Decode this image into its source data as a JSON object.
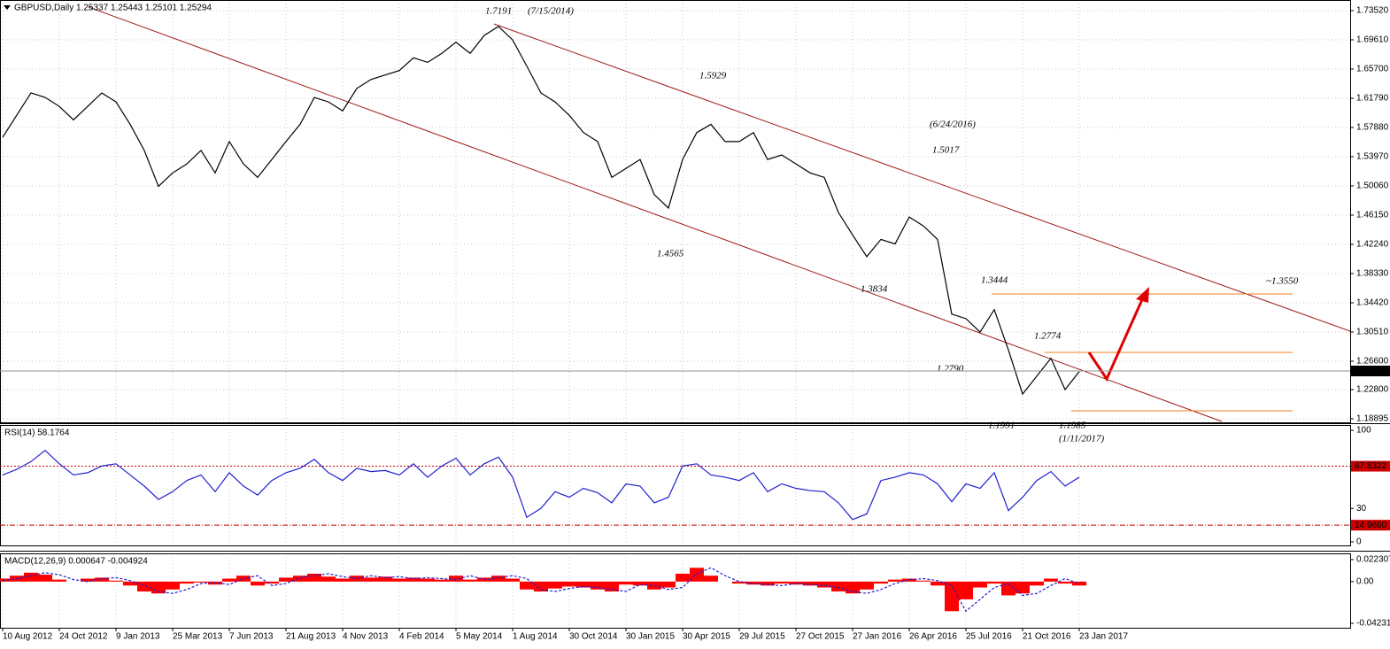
{
  "chart_data": [
    {
      "type": "line",
      "title": "GBPUSD,Daily  1.25337 1.25443 1.25101 1.25294",
      "series": [
        {
          "color": "#000000",
          "values": [
            1.5657,
            1.5954,
            1.625,
            1.619,
            1.607,
            1.589,
            1.607,
            1.625,
            1.613,
            1.583,
            1.548,
            1.5,
            1.518,
            1.53,
            1.548,
            1.518,
            1.56,
            1.53,
            1.512,
            1.536,
            1.56,
            1.583,
            1.619,
            1.613,
            1.601,
            1.631,
            1.643,
            1.649,
            1.655,
            1.672,
            1.666,
            1.678,
            1.693,
            1.678,
            1.702,
            1.714,
            1.696,
            1.661,
            1.625,
            1.613,
            1.595,
            1.572,
            1.56,
            1.512,
            1.524,
            1.536,
            1.489,
            1.471,
            1.536,
            1.572,
            1.583,
            1.56,
            1.56,
            1.572,
            1.536,
            1.542,
            1.53,
            1.518,
            1.512,
            1.465,
            1.435,
            1.406,
            1.429,
            1.423,
            1.459,
            1.447,
            1.429,
            1.329,
            1.323,
            1.305,
            1.335,
            1.281,
            1.222,
            1.246,
            1.27,
            1.228,
            1.252
          ]
        }
      ],
      "ylim": [
        1.1842,
        1.7494
      ],
      "yticks": [
        {
          "value": 1.7352,
          "label": "1.73520"
        },
        {
          "value": 1.6961,
          "label": "1.69610"
        },
        {
          "value": 1.657,
          "label": "1.65700"
        },
        {
          "value": 1.6179,
          "label": "1.61790"
        },
        {
          "value": 1.5788,
          "label": "1.57880"
        },
        {
          "value": 1.5397,
          "label": "1.53970"
        },
        {
          "value": 1.5006,
          "label": "1.50060"
        },
        {
          "value": 1.4615,
          "label": "1.46150"
        },
        {
          "value": 1.4224,
          "label": "1.42240"
        },
        {
          "value": 1.3833,
          "label": "1.38330"
        },
        {
          "value": 1.3442,
          "label": "1.34420"
        },
        {
          "value": 1.3051,
          "label": "1.30510"
        },
        {
          "value": 1.266,
          "label": "1.26600"
        },
        {
          "value": 1.228,
          "label": "1.22800"
        },
        {
          "value": 1.18895,
          "label": "1.18895"
        }
      ],
      "current_price": 1.25294,
      "grid": true,
      "annotations": [
        {
          "text": "1.7191",
          "color": "#e00000"
        },
        {
          "text": "(7/15/2014)",
          "color": "#e00000"
        },
        {
          "text": "1.5929",
          "color": "#2a2ad0"
        },
        {
          "text": "(6/24/2016)",
          "color": "#e00000"
        },
        {
          "text": "1.5017",
          "color": "#9a3cb8"
        },
        {
          "text": "1.4565",
          "color": "#9a3cb8"
        },
        {
          "text": "1.3834",
          "color": "#2a2ad0"
        },
        {
          "text": "1.3444",
          "color": "#9a3cb8"
        },
        {
          "text": "~1.3550",
          "color": "#f08020"
        },
        {
          "text": "1.2774",
          "color": "#9a3cb8"
        },
        {
          "text": "1.2790",
          "color": "#9a3cb8"
        },
        {
          "text": "1.1991",
          "color": "#10a010"
        },
        {
          "text": "1.1985",
          "color": "#10a010"
        },
        {
          "text": "(1/11/2017)",
          "color": "#e00000"
        }
      ]
    },
    {
      "type": "line",
      "title": "RSI(14) 58.1764",
      "series": [
        {
          "color": "#1f1fd0",
          "values": [
            60,
            65,
            72,
            82,
            70,
            60,
            62,
            68,
            70,
            60,
            50,
            38,
            45,
            55,
            60,
            45,
            62,
            50,
            42,
            55,
            62,
            66,
            74,
            62,
            55,
            66,
            63,
            64,
            60,
            70,
            58,
            68,
            75,
            60,
            70,
            76,
            58,
            22,
            30,
            45,
            40,
            48,
            44,
            35,
            52,
            50,
            35,
            40,
            68,
            70,
            60,
            58,
            55,
            62,
            45,
            52,
            48,
            46,
            45,
            35,
            20,
            25,
            55,
            58,
            62,
            60,
            52,
            36,
            52,
            48,
            62,
            28,
            40,
            55,
            63,
            50,
            58
          ]
        }
      ],
      "ylim": [
        -3.2,
        104.8
      ],
      "yticks": [
        100,
        30,
        0
      ],
      "levels": [
        {
          "value": 67.8322,
          "label": "67.8322"
        },
        {
          "value": 14.966,
          "label": "14.9660"
        }
      ],
      "level_color": "#cc0000"
    },
    {
      "type": "bar",
      "title": "MACD(12,26,9) 0.000647 -0.004924",
      "categories": [
        "10 Aug 2012",
        null,
        null,
        null,
        "24 Oct 2012",
        null,
        null,
        null,
        "9 Jan 2013",
        null,
        null,
        null,
        "25 Mar 2013",
        null,
        null,
        null,
        "7 Jun 2013",
        null,
        null,
        null,
        "21 Aug 2013",
        null,
        null,
        null,
        "4 Nov 2013",
        null,
        null,
        null,
        "4 Feb 2014",
        null,
        null,
        null,
        "5 May 2014",
        null,
        null,
        null,
        "1 Aug 2014",
        null,
        null,
        null,
        "30 Oct 2014",
        null,
        null,
        null,
        "30 Jan 2015",
        null,
        null,
        null,
        "30 Apr 2015",
        null,
        null,
        null,
        "29 Jul 2015",
        null,
        null,
        null,
        "27 Oct 2015",
        null,
        null,
        null,
        "27 Jan 2016",
        null,
        null,
        null,
        "26 Apr 2016",
        null,
        null,
        null,
        "25 Jul 2016",
        null,
        null,
        null,
        "21 Oct 2016",
        null,
        null,
        null,
        "23 Jan 2017"
      ],
      "series": [
        {
          "color": "#ff0000",
          "values": [
            0.003,
            0.006,
            0.009,
            0.007,
            0.002,
            0,
            0.003,
            0.004,
            0.001,
            -0.004,
            -0.01,
            -0.012,
            -0.008,
            -0.002,
            -0.001,
            -0.003,
            0.003,
            0.006,
            -0.004,
            -0.002,
            0.004,
            0.006,
            0.008,
            0.005,
            0.003,
            0.006,
            0.004,
            0.005,
            0.003,
            0.004,
            0.003,
            0.002,
            0.006,
            0.002,
            0.004,
            0.006,
            0.003,
            -0.008,
            -0.01,
            -0.007,
            -0.005,
            -0.006,
            -0.008,
            -0.01,
            -0.003,
            -0.004,
            -0.008,
            -0.006,
            0.008,
            0.014,
            0.006,
            0,
            -0.002,
            -0.003,
            -0.004,
            -0.002,
            -0.003,
            -0.004,
            -0.006,
            -0.01,
            -0.012,
            -0.008,
            -0.002,
            0.002,
            0.003,
            0.001,
            -0.004,
            -0.03,
            -0.018,
            -0.006,
            -0.002,
            -0.014,
            -0.012,
            -0.004,
            0.003,
            -0.002,
            -0.004
          ]
        },
        {
          "color": "#1f1fd0",
          "values": [
            0.001,
            0.003,
            0.006,
            0.009,
            0.007,
            0.002,
            0,
            0.003,
            0.004,
            0.001,
            -0.004,
            -0.01,
            -0.012,
            -0.008,
            -0.002,
            -0.001,
            -0.003,
            0.003,
            0.006,
            -0.004,
            -0.002,
            0.004,
            0.006,
            0.008,
            0.005,
            0.003,
            0.006,
            0.004,
            0.005,
            0.003,
            0.004,
            0.003,
            0.002,
            0.006,
            0.002,
            0.004,
            0.006,
            0.003,
            -0.008,
            -0.01,
            -0.007,
            -0.005,
            -0.006,
            -0.008,
            -0.01,
            -0.003,
            -0.004,
            -0.008,
            -0.006,
            0.008,
            0.014,
            0.006,
            0,
            -0.002,
            -0.003,
            -0.004,
            -0.002,
            -0.003,
            -0.004,
            -0.006,
            -0.01,
            -0.012,
            -0.008,
            -0.002,
            0.002,
            0.003,
            0.001,
            -0.004,
            -0.03,
            -0.018,
            -0.006,
            -0.002,
            -0.014,
            -0.012,
            -0.004,
            0.003,
            -0.002
          ]
        }
      ],
      "ylim": [
        -0.0468,
        0.0286
      ],
      "yticks": [
        0.022307,
        {
          "value": 0,
          "label": "0.00"
        },
        -0.042312
      ]
    }
  ]
}
